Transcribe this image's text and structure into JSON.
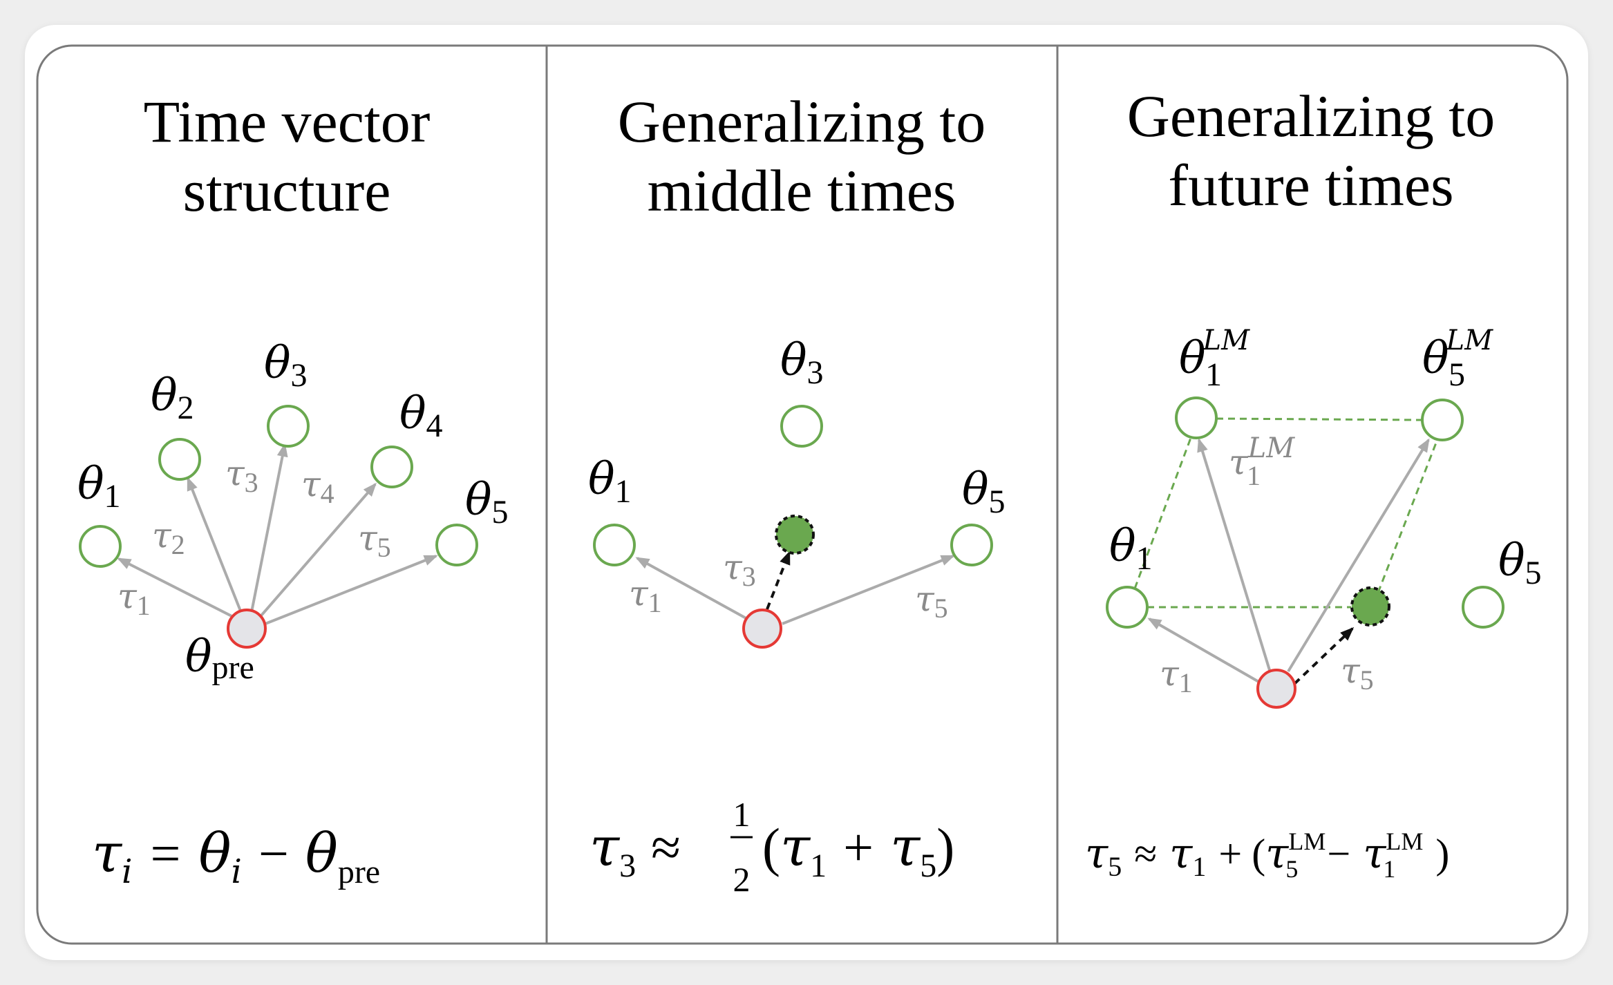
{
  "panels": [
    {
      "title_line1": "Time vector",
      "title_line2": "structure",
      "theta": "θ",
      "tau": "τ",
      "indices": [
        "1",
        "2",
        "3",
        "4",
        "5"
      ],
      "pre": "pre",
      "formula": {
        "lhs_var": "τ",
        "lhs_sub": "i",
        "eq": "=",
        "theta_i": "θ",
        "theta_i_sub": "i",
        "minus": "−",
        "theta_pre": "θ",
        "theta_pre_sub": "pre"
      }
    },
    {
      "title_line1": "Generalizing to",
      "title_line2": "middle times",
      "theta": "θ",
      "tau": "τ",
      "indices": [
        "1",
        "3",
        "5"
      ],
      "formula": {
        "lhs_var": "τ",
        "lhs_sub": "3",
        "approx": "≈",
        "frac_num": "1",
        "frac_den": "2",
        "lparen": "(",
        "t1": "τ",
        "t1_sub": "1",
        "plus": "+",
        "t5": "τ",
        "t5_sub": "5",
        "rparen": ")"
      }
    },
    {
      "title_line1": "Generalizing to",
      "title_line2": "future times",
      "theta": "θ",
      "tau": "τ",
      "sup_lm_italic": "LM",
      "indices": [
        "1",
        "5"
      ],
      "formula": {
        "lhs_var": "τ",
        "lhs_sub": "5",
        "approx": "≈",
        "t1": "τ",
        "t1_sub": "1",
        "plus": "+",
        "lparen": "(",
        "a": "τ",
        "a_sub": "5",
        "a_sup": "LM",
        "minus": "−",
        "b": "τ",
        "b_sub": "1",
        "b_sup": "LM",
        "rparen": ")"
      }
    }
  ],
  "colors": {
    "node_green": "#6aa84f",
    "node_fill_green": "#6aa84f",
    "node_red": "#e53935",
    "node_fill_gray": "#e4e4e8",
    "arrow_gray": "#ababab",
    "dashed_green": "#6aa84f",
    "frame": "#7a7a7a"
  }
}
